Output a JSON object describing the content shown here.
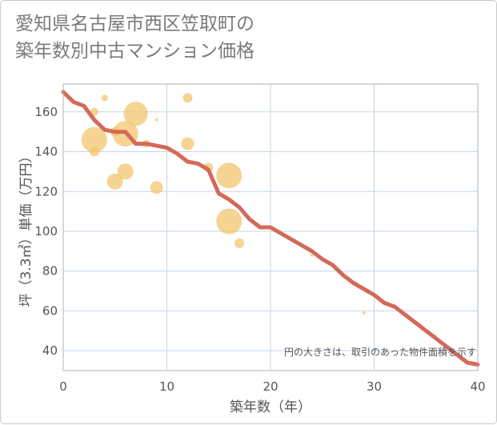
{
  "title_line1": "愛知県名古屋市西区笠取町の",
  "title_line2": "築年数別中古マンション価格",
  "chart_data": {
    "type": "scatter",
    "xlabel": "築年数（年）",
    "ylabel": "坪（3.3㎡）単価（万円）",
    "xlim": [
      0,
      40
    ],
    "ylim": [
      30,
      174
    ],
    "xticks": [
      0,
      10,
      20,
      30,
      40
    ],
    "yticks": [
      40,
      60,
      80,
      100,
      120,
      140,
      160
    ],
    "grid": true,
    "annotation": "円の大きさは、取引のあった物件面積を示す",
    "colors": {
      "bubble": "#f3c46a",
      "line": "#d4695a",
      "grid": "#c6d6e6"
    },
    "bubbles": [
      {
        "x": 3,
        "y": 146,
        "size": 16
      },
      {
        "x": 6,
        "y": 149,
        "size": 16
      },
      {
        "x": 7,
        "y": 159,
        "size": 15
      },
      {
        "x": 16,
        "y": 128,
        "size": 16
      },
      {
        "x": 16,
        "y": 105,
        "size": 16
      },
      {
        "x": 3,
        "y": 160,
        "size": 5
      },
      {
        "x": 3,
        "y": 140,
        "size": 6
      },
      {
        "x": 4,
        "y": 167,
        "size": 4
      },
      {
        "x": 5,
        "y": 125,
        "size": 10
      },
      {
        "x": 5,
        "y": 150,
        "size": 6
      },
      {
        "x": 6,
        "y": 130,
        "size": 10
      },
      {
        "x": 8,
        "y": 144,
        "size": 5
      },
      {
        "x": 9,
        "y": 122,
        "size": 8
      },
      {
        "x": 9,
        "y": 156,
        "size": 2
      },
      {
        "x": 12,
        "y": 167,
        "size": 6
      },
      {
        "x": 12,
        "y": 144,
        "size": 8
      },
      {
        "x": 14,
        "y": 132,
        "size": 6
      },
      {
        "x": 17,
        "y": 94,
        "size": 6
      },
      {
        "x": 24,
        "y": 88,
        "size": 2
      },
      {
        "x": 29,
        "y": 59,
        "size": 2
      }
    ],
    "trend": {
      "x": [
        0,
        1,
        2,
        3,
        4,
        5,
        6,
        7,
        8,
        9,
        10,
        11,
        12,
        13,
        14,
        15,
        16,
        17,
        18,
        19,
        20,
        21,
        22,
        23,
        24,
        25,
        26,
        27,
        28,
        29,
        30,
        31,
        32,
        33,
        34,
        35,
        36,
        37,
        38,
        39,
        40
      ],
      "y": [
        170,
        165,
        163,
        156,
        151,
        150,
        150,
        144,
        144,
        143,
        142,
        139,
        135,
        134,
        131,
        119,
        116,
        112,
        106,
        102,
        102,
        99,
        96,
        93,
        90,
        86,
        83,
        78,
        74,
        71,
        68,
        64,
        62,
        58,
        54,
        50,
        46,
        42,
        38,
        34,
        33
      ]
    }
  }
}
